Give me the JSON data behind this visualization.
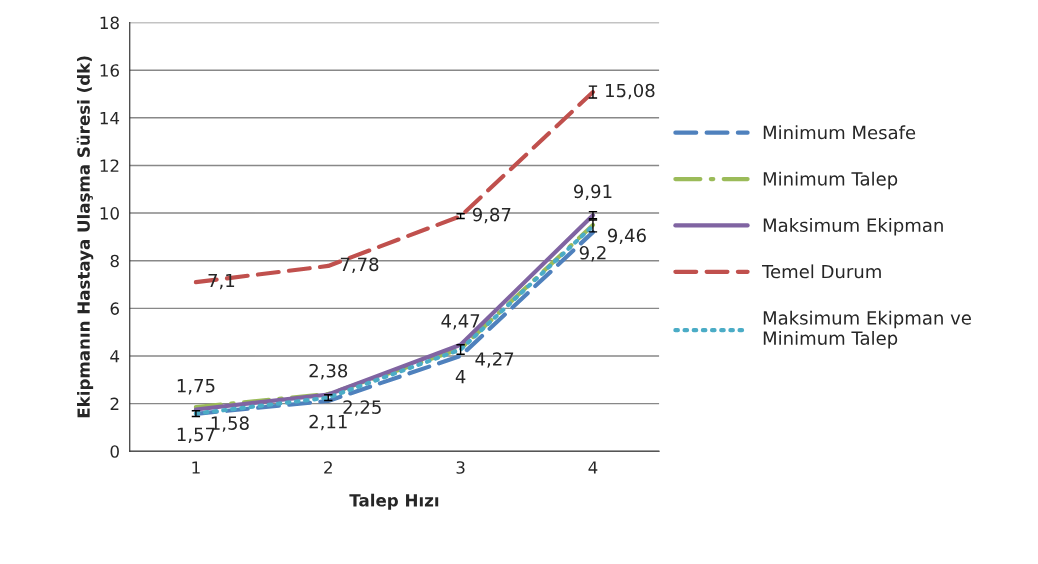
{
  "chart_data": {
    "type": "line",
    "xlabel": "Talep Hızı",
    "ylabel": "Ekipmanın Hastaya Ulaşma Süresi (dk)",
    "categories": [
      "1",
      "2",
      "3",
      "4"
    ],
    "ylim": [
      0,
      18
    ],
    "yticks": [
      0,
      2,
      4,
      6,
      8,
      10,
      12,
      14,
      16,
      18
    ],
    "grid": "y",
    "legend": "right",
    "series": [
      {
        "name": "Minimum Mesafe",
        "color": "#4f81bd",
        "line_style": "dashed",
        "values": [
          1.57,
          2.11,
          4,
          9.2
        ],
        "value_labels": [
          "1,57",
          "2,11",
          "4",
          "9,2"
        ]
      },
      {
        "name": "Minimum Talep",
        "color": "#9bbb59",
        "line_style": "dashdot",
        "values": [
          1.85,
          2.4,
          4.3,
          9.5
        ]
      },
      {
        "name": "Maksimum Ekipman",
        "color": "#8064a2",
        "line_style": "solid",
        "values": [
          1.75,
          2.38,
          4.47,
          9.91
        ],
        "value_labels": [
          "1,75",
          "2,38",
          "4,47",
          "9,91"
        ],
        "errors": [
          null,
          null,
          null,
          0.15
        ]
      },
      {
        "name": "Temel Durum",
        "color": "#c0504d",
        "line_style": "dashed",
        "values": [
          7.1,
          7.78,
          9.87,
          15.08
        ],
        "value_labels": [
          "7,1",
          "7,78",
          "9,87",
          "15,08"
        ],
        "errors": [
          null,
          null,
          0.1,
          0.25
        ]
      },
      {
        "name": "Maksimum Ekipman ve\nMinimum Talep",
        "color": "#4bacc6",
        "line_style": "dotted",
        "values": [
          1.58,
          2.25,
          4.27,
          9.46
        ],
        "value_labels": [
          "1,58",
          "2,25",
          "4,27",
          "9,46"
        ],
        "errors": [
          0.12,
          0.12,
          0.2,
          0.25
        ]
      }
    ]
  }
}
